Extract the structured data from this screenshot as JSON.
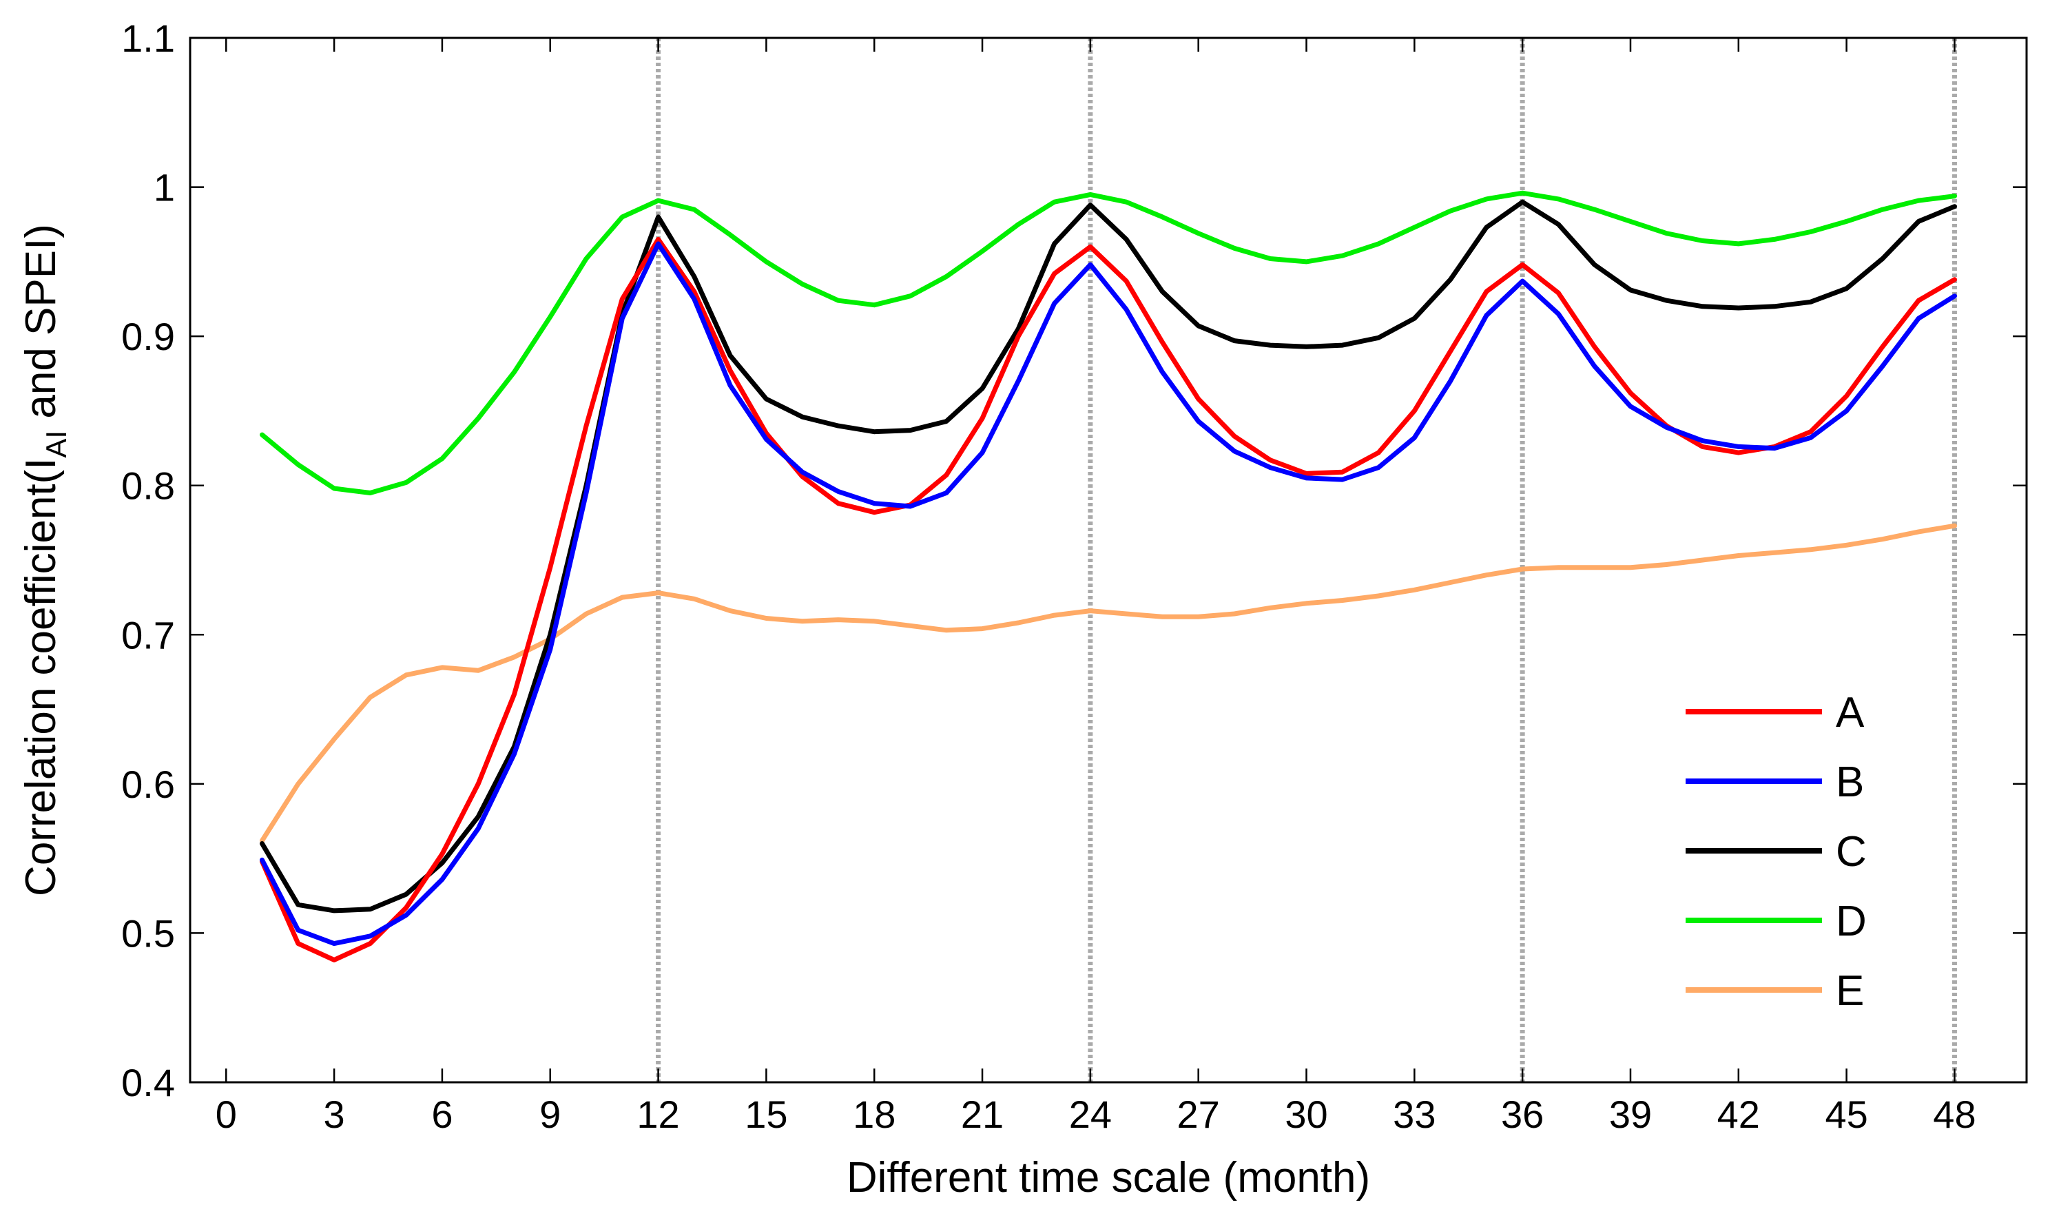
{
  "chart_data": {
    "type": "line",
    "title": "",
    "xlabel": "Different time scale (month)",
    "ylabel_main": "Correlation coefficient(I",
    "ylabel_sub": "AI",
    "ylabel_tail": " and SPEI)",
    "xlim": [
      -1,
      50
    ],
    "ylim": [
      0.4,
      1.1
    ],
    "x_ticks": [
      0,
      3,
      6,
      9,
      12,
      15,
      18,
      21,
      24,
      27,
      30,
      33,
      36,
      39,
      42,
      45,
      48
    ],
    "y_ticks": [
      0.4,
      0.5,
      0.6,
      0.7,
      0.8,
      0.9,
      1,
      1.1
    ],
    "y_tick_labels": [
      "0.4",
      "0.5",
      "0.6",
      "0.7",
      "0.8",
      "0.9",
      "1",
      "1.1"
    ],
    "vertical_reference_lines": [
      12,
      24,
      36,
      48
    ],
    "legend_position": "lower-right",
    "x": [
      1,
      2,
      3,
      4,
      5,
      6,
      7,
      8,
      9,
      10,
      11,
      12,
      13,
      14,
      15,
      16,
      17,
      18,
      19,
      20,
      21,
      22,
      23,
      24,
      25,
      26,
      27,
      28,
      29,
      30,
      31,
      32,
      33,
      34,
      35,
      36,
      37,
      38,
      39,
      40,
      41,
      42,
      43,
      44,
      45,
      46,
      47,
      48
    ],
    "series": [
      {
        "name": "A",
        "color": "#ff0000",
        "values": [
          0.548,
          0.493,
          0.482,
          0.493,
          0.517,
          0.553,
          0.6,
          0.66,
          0.745,
          0.84,
          0.925,
          0.965,
          0.93,
          0.877,
          0.835,
          0.806,
          0.788,
          0.782,
          0.787,
          0.807,
          0.845,
          0.9,
          0.942,
          0.96,
          0.937,
          0.896,
          0.858,
          0.833,
          0.817,
          0.808,
          0.809,
          0.822,
          0.85,
          0.89,
          0.93,
          0.948,
          0.929,
          0.893,
          0.862,
          0.84,
          0.826,
          0.822,
          0.826,
          0.836,
          0.86,
          0.893,
          0.924,
          0.938
        ]
      },
      {
        "name": "B",
        "color": "#0000ff",
        "values": [
          0.549,
          0.502,
          0.493,
          0.498,
          0.512,
          0.536,
          0.57,
          0.62,
          0.69,
          0.795,
          0.912,
          0.962,
          0.925,
          0.867,
          0.831,
          0.809,
          0.796,
          0.788,
          0.786,
          0.795,
          0.822,
          0.87,
          0.922,
          0.948,
          0.918,
          0.876,
          0.843,
          0.823,
          0.812,
          0.805,
          0.804,
          0.812,
          0.832,
          0.87,
          0.914,
          0.937,
          0.915,
          0.88,
          0.853,
          0.839,
          0.83,
          0.826,
          0.825,
          0.832,
          0.85,
          0.88,
          0.912,
          0.927
        ]
      },
      {
        "name": "C",
        "color": "#000000",
        "values": [
          0.56,
          0.519,
          0.515,
          0.516,
          0.526,
          0.547,
          0.578,
          0.625,
          0.7,
          0.8,
          0.915,
          0.98,
          0.94,
          0.887,
          0.858,
          0.846,
          0.84,
          0.836,
          0.837,
          0.843,
          0.865,
          0.905,
          0.962,
          0.988,
          0.965,
          0.93,
          0.907,
          0.897,
          0.894,
          0.893,
          0.894,
          0.899,
          0.912,
          0.938,
          0.973,
          0.99,
          0.975,
          0.948,
          0.931,
          0.924,
          0.92,
          0.919,
          0.92,
          0.923,
          0.932,
          0.952,
          0.977,
          0.987
        ]
      },
      {
        "name": "D",
        "color": "#00ee00",
        "values": [
          0.834,
          0.814,
          0.798,
          0.795,
          0.802,
          0.818,
          0.845,
          0.876,
          0.913,
          0.952,
          0.98,
          0.991,
          0.985,
          0.968,
          0.95,
          0.935,
          0.924,
          0.921,
          0.927,
          0.94,
          0.957,
          0.975,
          0.99,
          0.995,
          0.99,
          0.98,
          0.969,
          0.959,
          0.952,
          0.95,
          0.954,
          0.962,
          0.973,
          0.984,
          0.992,
          0.996,
          0.992,
          0.985,
          0.977,
          0.969,
          0.964,
          0.962,
          0.965,
          0.97,
          0.977,
          0.985,
          0.991,
          0.994
        ]
      },
      {
        "name": "E",
        "color": "#ffaa66",
        "values": [
          0.562,
          0.6,
          0.63,
          0.658,
          0.673,
          0.678,
          0.676,
          0.685,
          0.697,
          0.714,
          0.725,
          0.728,
          0.724,
          0.716,
          0.711,
          0.709,
          0.71,
          0.709,
          0.706,
          0.703,
          0.704,
          0.708,
          0.713,
          0.716,
          0.714,
          0.712,
          0.712,
          0.714,
          0.718,
          0.721,
          0.723,
          0.726,
          0.73,
          0.735,
          0.74,
          0.744,
          0.745,
          0.745,
          0.745,
          0.747,
          0.75,
          0.753,
          0.755,
          0.757,
          0.76,
          0.764,
          0.769,
          0.773
        ]
      }
    ]
  }
}
